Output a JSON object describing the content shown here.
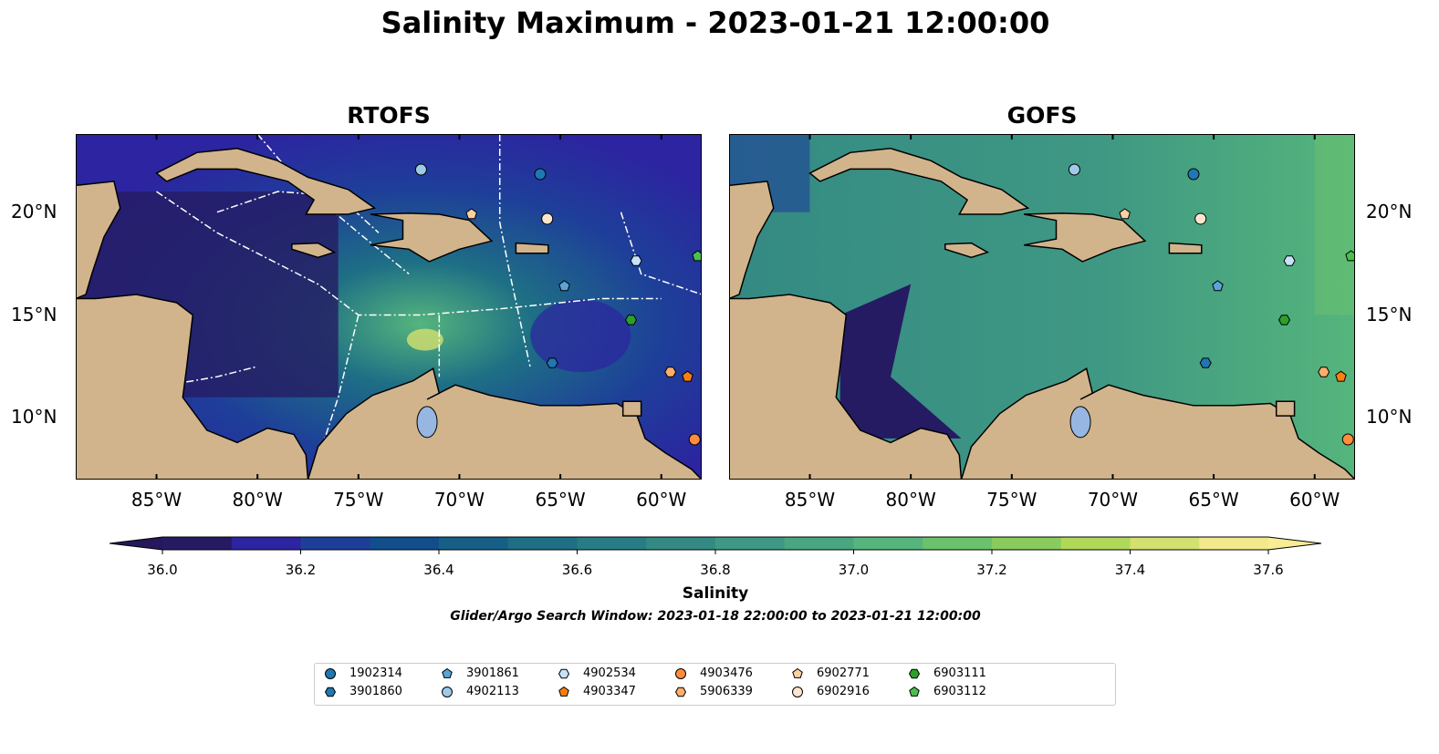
{
  "title": "Salinity Maximum - 2023-01-21 12:00:00",
  "panels": [
    {
      "title": "RTOFS",
      "style": "rtofs"
    },
    {
      "title": "GOFS",
      "style": "gofs"
    }
  ],
  "map_extent": {
    "lon": [
      -89,
      -58
    ],
    "lat": [
      7,
      23.8
    ]
  },
  "lon_ticks": [
    {
      "value": -85,
      "label": "85°W"
    },
    {
      "value": -80,
      "label": "80°W"
    },
    {
      "value": -75,
      "label": "75°W"
    },
    {
      "value": -70,
      "label": "70°W"
    },
    {
      "value": -65,
      "label": "65°W"
    },
    {
      "value": -60,
      "label": "60°W"
    }
  ],
  "lat_ticks": [
    {
      "value": 20,
      "label": "20°N"
    },
    {
      "value": 15,
      "label": "15°N"
    },
    {
      "value": 10,
      "label": "10°N"
    }
  ],
  "colorbar": {
    "label": "Salinity",
    "range": [
      36.0,
      37.6
    ],
    "ticks": [
      "36.0",
      "36.2",
      "36.4",
      "36.6",
      "36.8",
      "37.0",
      "37.2",
      "37.4",
      "37.6"
    ],
    "under_color": "#26185a",
    "over_color": "#f8ec94",
    "colors": [
      "#251b63",
      "#2c24a0",
      "#1e3f99",
      "#124e8c",
      "#175f86",
      "#1e6f85",
      "#287d85",
      "#348a83",
      "#3f9883",
      "#48a680",
      "#55b57c",
      "#6bc26c",
      "#89cc5d",
      "#b0d95a",
      "#d4e06f",
      "#f2e88c"
    ]
  },
  "search_window": "Glider/Argo Search Window: 2023-01-18 22:00:00 to 2023-01-21 12:00:00",
  "floats": [
    {
      "id": "1902314",
      "marker": "circle",
      "color": "#1f77b4",
      "lon": -66.0,
      "lat": 21.85
    },
    {
      "id": "3901860",
      "marker": "hexagon",
      "color": "#1f77b4",
      "lon": -65.4,
      "lat": 12.67
    },
    {
      "id": "3901861",
      "marker": "pentagon",
      "color": "#5ba3d9",
      "lon": -64.8,
      "lat": 16.4
    },
    {
      "id": "4902113",
      "marker": "circle",
      "color": "#9ecae9",
      "lon": -71.9,
      "lat": 22.07
    },
    {
      "id": "4902534",
      "marker": "hexagon",
      "color": "#c6e2f7",
      "lon": -61.25,
      "lat": 17.64
    },
    {
      "id": "4903347",
      "marker": "pentagon",
      "color": "#ff7f0e",
      "lon": -58.7,
      "lat": 12.0
    },
    {
      "id": "4903476",
      "marker": "circle",
      "color": "#fd8d3c",
      "lon": -58.35,
      "lat": 8.95
    },
    {
      "id": "5906339",
      "marker": "hexagon",
      "color": "#fdae6b",
      "lon": -59.55,
      "lat": 12.23
    },
    {
      "id": "6902771",
      "marker": "pentagon",
      "color": "#fdd0a2",
      "lon": -69.4,
      "lat": 19.9
    },
    {
      "id": "6902916",
      "marker": "circle",
      "color": "#fee6ce",
      "lon": -65.65,
      "lat": 19.68
    },
    {
      "id": "6903111",
      "marker": "hexagon",
      "color": "#2ca02c",
      "lon": -61.5,
      "lat": 14.76
    },
    {
      "id": "6903112",
      "marker": "pentagon",
      "color": "#4cbf4c",
      "lon": -58.2,
      "lat": 17.86
    }
  ],
  "land_color": "#d2b48c",
  "lake_color": "#97b6e1"
}
